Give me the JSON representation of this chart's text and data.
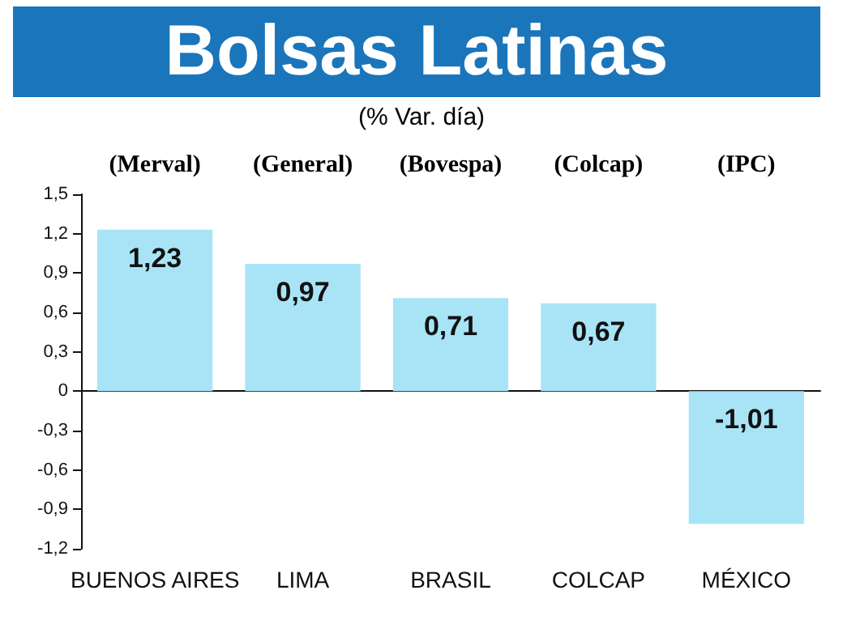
{
  "chart_data": {
    "type": "bar",
    "title": "Bolsas Latinas",
    "subtitle": "(% Var. día)",
    "categories": [
      "BUENOS AIRES",
      "LIMA",
      "BRASIL",
      "COLCAP",
      "MÉXICO"
    ],
    "values": [
      1.23,
      0.97,
      0.71,
      0.67,
      -1.01
    ],
    "value_labels": [
      "1,23",
      "0,97",
      "0,71",
      "0,67",
      "-1,01"
    ],
    "color": "#a8e4f6",
    "annotations": [
      "(Merval)",
      "(General)",
      "(Bovespa)",
      "(Colcap)",
      "(IPC)"
    ],
    "ylim": [
      -1.2,
      1.5
    ],
    "yticks": [
      {
        "value": -1.2,
        "label": "-1,2"
      },
      {
        "value": -0.9,
        "label": "-0,9"
      },
      {
        "value": -0.6,
        "label": "-0,6"
      },
      {
        "value": -0.3,
        "label": "-0,3"
      },
      {
        "value": 0,
        "label": "0"
      },
      {
        "value": 0.3,
        "label": "0,3"
      },
      {
        "value": 0.6,
        "label": "0,6"
      },
      {
        "value": 0.9,
        "label": "0,9"
      },
      {
        "value": 1.2,
        "label": "1,2"
      },
      {
        "value": 1.5,
        "label": "1,5"
      }
    ]
  }
}
